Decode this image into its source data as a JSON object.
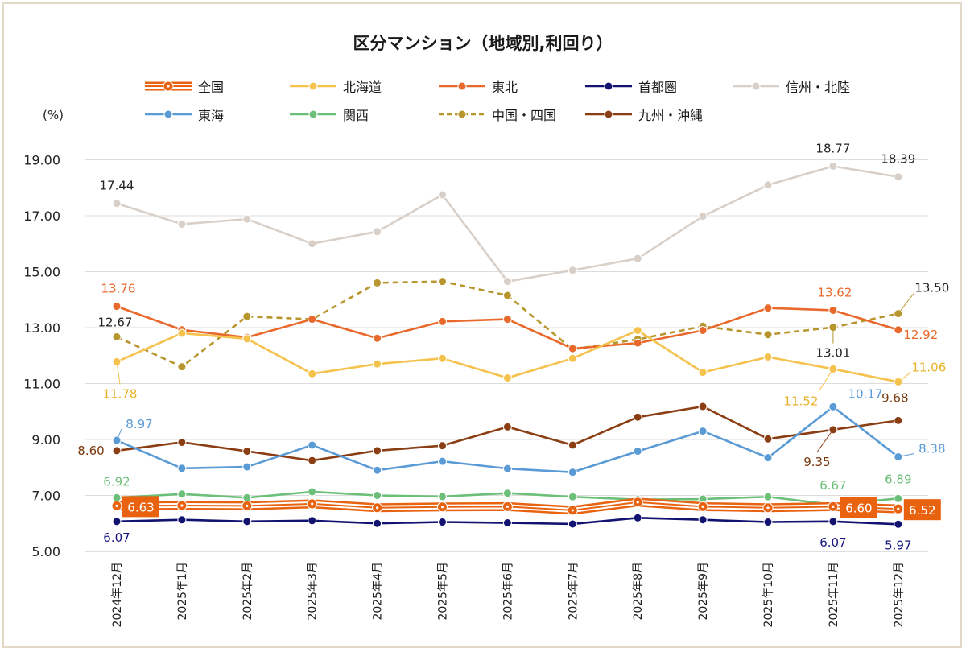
{
  "chart_data": {
    "type": "line",
    "title": "区分マンション（地域別,利回り）",
    "ylabel": "(%)",
    "ylim": [
      5.0,
      19.0
    ],
    "yticks": [
      "5.00",
      "7.00",
      "9.00",
      "11.00",
      "13.00",
      "15.00",
      "17.00",
      "19.00"
    ],
    "categories": [
      "2024年12月",
      "2025年1月",
      "2025年2月",
      "2025年3月",
      "2025年4月",
      "2025年5月",
      "2025年6月",
      "2025年7月",
      "2025年8月",
      "2025年9月",
      "2025年10月",
      "2025年11月",
      "2025年12月"
    ],
    "series": [
      {
        "name": "全国",
        "color": "#e8620f",
        "values": [
          6.63,
          6.64,
          6.63,
          6.7,
          6.56,
          6.59,
          6.6,
          6.47,
          6.76,
          6.6,
          6.56,
          6.6,
          6.52
        ]
      },
      {
        "name": "北海道",
        "color": "#f5c24d",
        "values": [
          11.78,
          12.8,
          12.6,
          11.35,
          11.7,
          11.9,
          11.2,
          11.9,
          12.9,
          11.4,
          11.95,
          11.52,
          11.06
        ]
      },
      {
        "name": "東北",
        "color": "#e8692b",
        "values": [
          13.76,
          12.92,
          12.65,
          13.3,
          12.62,
          13.22,
          13.3,
          12.25,
          12.45,
          12.9,
          13.7,
          13.62,
          12.92
        ]
      },
      {
        "name": "首都圏",
        "color": "#121270",
        "values": [
          6.07,
          6.13,
          6.07,
          6.1,
          6.0,
          6.05,
          6.02,
          5.98,
          6.2,
          6.13,
          6.05,
          6.07,
          5.97
        ]
      },
      {
        "name": "信州・北陸",
        "color": "#d8d0c8",
        "values": [
          17.44,
          16.7,
          16.88,
          16.0,
          16.43,
          17.75,
          14.65,
          15.05,
          15.47,
          16.98,
          18.1,
          18.77,
          18.39
        ]
      },
      {
        "name": "東海",
        "color": "#5b9bd5",
        "values": [
          8.97,
          7.97,
          8.02,
          8.8,
          7.9,
          8.22,
          7.96,
          7.83,
          8.58,
          9.3,
          8.35,
          10.17,
          8.38
        ]
      },
      {
        "name": "関西",
        "color": "#6cbf78",
        "values": [
          6.92,
          7.05,
          6.92,
          7.13,
          7.0,
          6.96,
          7.08,
          6.95,
          6.85,
          6.87,
          6.95,
          6.67,
          6.89
        ]
      },
      {
        "name": "中国・四国",
        "color": "#b8962e",
        "dashed": true,
        "values": [
          12.67,
          11.6,
          13.4,
          13.3,
          14.6,
          14.65,
          14.15,
          12.22,
          12.58,
          13.05,
          12.75,
          13.01,
          13.5
        ]
      },
      {
        "name": "九州・沖縄",
        "color": "#8b3e13",
        "values": [
          8.6,
          8.9,
          8.58,
          8.25,
          8.6,
          8.78,
          9.45,
          8.8,
          9.8,
          10.18,
          9.02,
          9.35,
          9.68
        ]
      }
    ],
    "annotations": [
      {
        "series": "信州・北陸",
        "index": 0,
        "text": "17.44"
      },
      {
        "series": "信州・北陸",
        "index": 11,
        "text": "18.77"
      },
      {
        "series": "信州・北陸",
        "index": 12,
        "text": "18.39"
      },
      {
        "series": "東北",
        "index": 0,
        "text": "13.76"
      },
      {
        "series": "東北",
        "index": 11,
        "text": "13.62"
      },
      {
        "series": "東北",
        "index": 12,
        "text": "12.92"
      },
      {
        "series": "中国・四国",
        "index": 0,
        "text": "12.67"
      },
      {
        "series": "中国・四国",
        "index": 11,
        "text": "13.01"
      },
      {
        "series": "中国・四国",
        "index": 12,
        "text": "13.50"
      },
      {
        "series": "北海道",
        "index": 0,
        "text": "11.78"
      },
      {
        "series": "北海道",
        "index": 11,
        "text": "11.52"
      },
      {
        "series": "北海道",
        "index": 12,
        "text": "11.06"
      },
      {
        "series": "東海",
        "index": 0,
        "text": "8.97"
      },
      {
        "series": "東海",
        "index": 11,
        "text": "10.17"
      },
      {
        "series": "東海",
        "index": 12,
        "text": "8.38"
      },
      {
        "series": "九州・沖縄",
        "index": 0,
        "text": "8.60"
      },
      {
        "series": "九州・沖縄",
        "index": 11,
        "text": "9.35"
      },
      {
        "series": "九州・沖縄",
        "index": 12,
        "text": "9.68"
      },
      {
        "series": "関西",
        "index": 0,
        "text": "6.92"
      },
      {
        "series": "関西",
        "index": 11,
        "text": "6.67"
      },
      {
        "series": "関西",
        "index": 12,
        "text": "6.89"
      },
      {
        "series": "全国",
        "index": 0,
        "text": "6.63",
        "boxed": true
      },
      {
        "series": "全国",
        "index": 11,
        "text": "6.60",
        "boxed": true
      },
      {
        "series": "全国",
        "index": 12,
        "text": "6.52",
        "boxed": true
      },
      {
        "series": "首都圏",
        "index": 0,
        "text": "6.07"
      },
      {
        "series": "首都圏",
        "index": 11,
        "text": "6.07"
      },
      {
        "series": "首都圏",
        "index": 12,
        "text": "5.97"
      }
    ]
  }
}
